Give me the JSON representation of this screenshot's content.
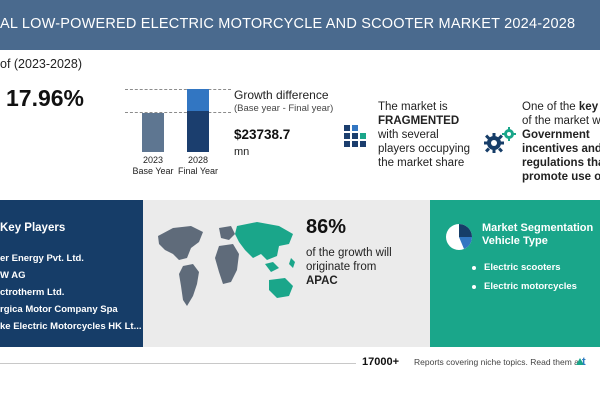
{
  "header": {
    "title": "AL LOW-POWERED ELECTRIC MOTORCYCLE AND SCOOTER MARKET 2024-2028"
  },
  "cagr": {
    "period_label": "of (2023-2028)",
    "value": "17.96%"
  },
  "growth": {
    "bars": [
      {
        "year": "2023",
        "label": "Base Year",
        "value_share": 0.55
      },
      {
        "year": "2028",
        "label": "Final Year",
        "value_share": 1.0,
        "increment_share": 0.35
      }
    ],
    "title": "Growth difference",
    "subtitle": "(Base year - Final year)",
    "value": "$23738.7",
    "unit": "mn"
  },
  "market_structure": {
    "line1": "The market is",
    "emphasis": "FRAGMENTED",
    "line2": "with several",
    "line3": "players occupying",
    "line4": "the market share"
  },
  "drivers": {
    "line1_pre": "One of the ",
    "line1_bold": "key d",
    "line2": "of the market w",
    "line3": "Government",
    "line4": "incentives and",
    "line5": "regulations tha",
    "line6": "promote use o"
  },
  "key_players": {
    "title": "Key Players",
    "items": [
      "er Energy Pvt. Ltd.",
      "W AG",
      "ctrotherm Ltd.",
      "rgica Motor Company Spa",
      "ke Electric Motorcycles HK Lt..."
    ]
  },
  "region": {
    "percent": "86%",
    "text": "of the growth will originate from",
    "name": "APAC"
  },
  "segmentation": {
    "title_line1": "Market Segmentation",
    "title_line2": "Vehicle Type",
    "items": [
      "Electric scooters",
      "Electric motorcycles"
    ]
  },
  "footer": {
    "count": "17000+",
    "text": "Reports covering niche topics. Read them at",
    "logo_fragment": "t"
  },
  "colors": {
    "title_bar": "#4a6a8e",
    "navy": "#163d68",
    "teal": "#1aa68a",
    "accent_blue": "#3276c2",
    "map_gray": "#ebebeb"
  }
}
